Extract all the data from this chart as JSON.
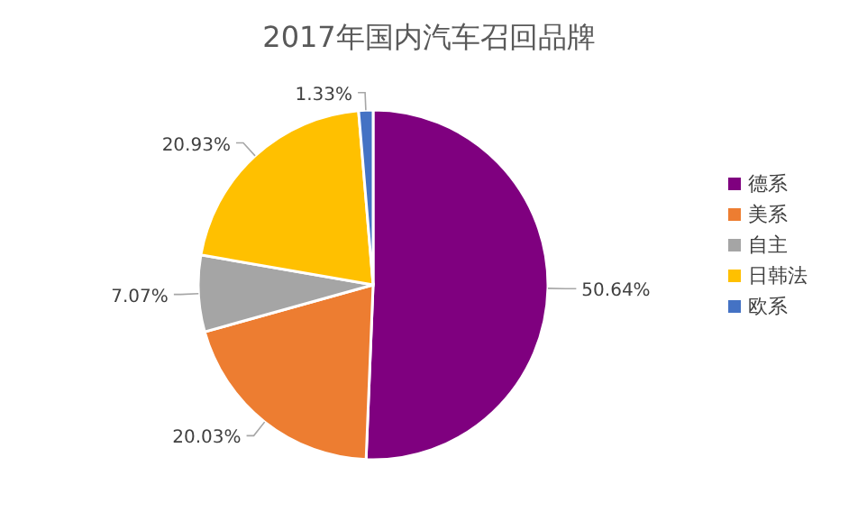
{
  "chart_data": {
    "type": "pie",
    "title": "2017年国内汽车召回品牌",
    "categories": [
      "德系",
      "美系",
      "自主",
      "日韩法",
      "欧系"
    ],
    "values": [
      50.64,
      20.03,
      7.07,
      20.93,
      1.33
    ],
    "colors": [
      "#7f007f",
      "#ed7d31",
      "#a5a5a5",
      "#ffc000",
      "#4472c4"
    ],
    "value_labels": [
      "50.64%",
      "20.03%",
      "7.07%",
      "20.93%",
      "1.33%"
    ],
    "legend": "right"
  }
}
